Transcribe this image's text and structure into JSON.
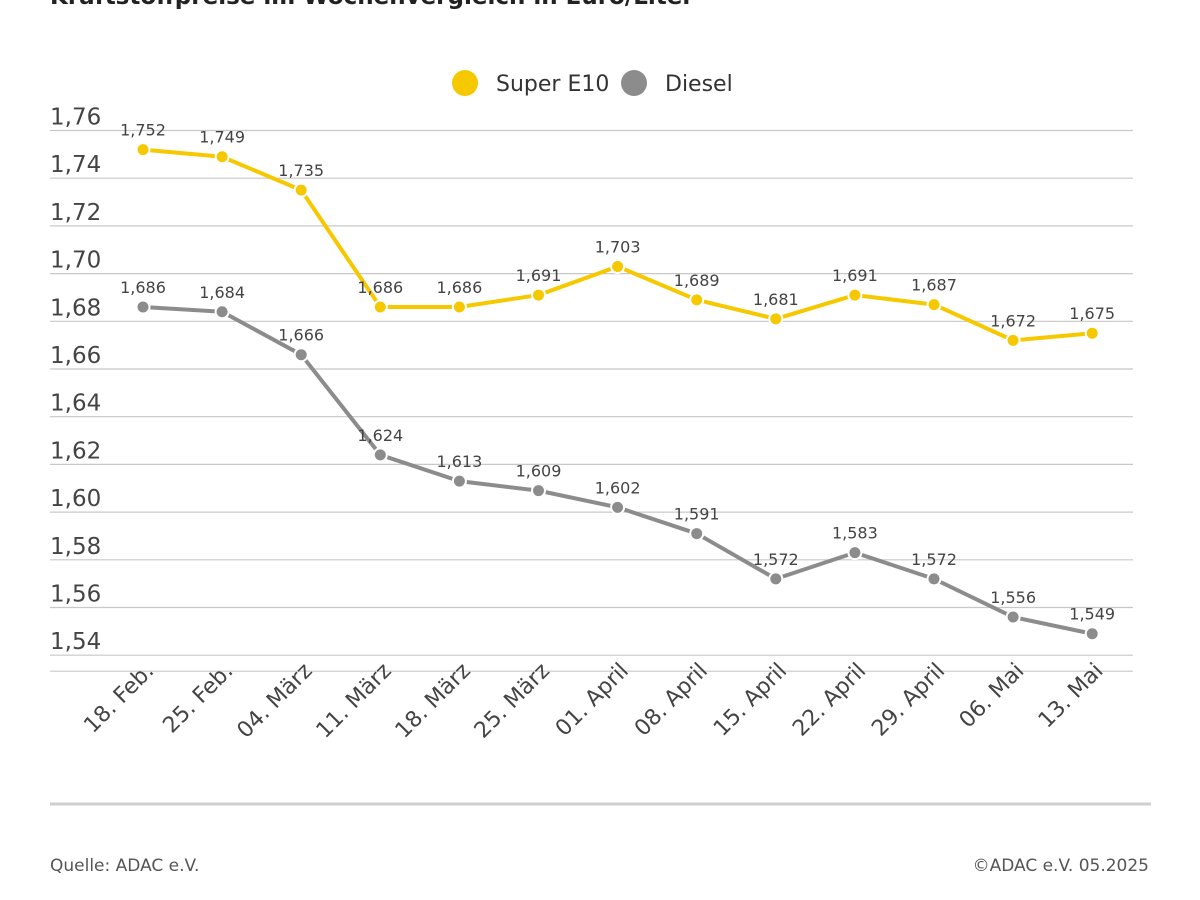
{
  "chart_data": {
    "type": "line",
    "title": "Kraftstoffpreise im Wochenvergleich in Euro/Liter",
    "categories": [
      "18. Feb.",
      "25. Feb.",
      "04. März",
      "11. März",
      "18. März",
      "25. März",
      "01. April",
      "08. April",
      "15. April",
      "22. April",
      "29. April",
      "06. Mai",
      "13. Mai"
    ],
    "series": [
      {
        "name": "Super E10",
        "color": "#f6c800",
        "values": [
          1.752,
          1.749,
          1.735,
          1.686,
          1.686,
          1.691,
          1.703,
          1.689,
          1.681,
          1.691,
          1.687,
          1.672,
          1.675
        ],
        "labels": [
          "1,752",
          "1,749",
          "1,735",
          "1,686",
          "1,686",
          "1,691",
          "1,703",
          "1,689",
          "1,681",
          "1,691",
          "1,687",
          "1,672",
          "1,675"
        ]
      },
      {
        "name": "Diesel",
        "color": "#8c8c8c",
        "values": [
          1.686,
          1.684,
          1.666,
          1.624,
          1.613,
          1.609,
          1.602,
          1.591,
          1.572,
          1.583,
          1.572,
          1.556,
          1.549
        ],
        "labels": [
          "1,686",
          "1,684",
          "1,666",
          "1,624",
          "1,613",
          "1,609",
          "1,602",
          "1,591",
          "1,572",
          "1,583",
          "1,572",
          "1,556",
          "1,549"
        ]
      }
    ],
    "y_ticks": [
      1.76,
      1.74,
      1.72,
      1.7,
      1.68,
      1.66,
      1.64,
      1.62,
      1.6,
      1.58,
      1.56,
      1.54
    ],
    "y_tick_labels": [
      "1,76",
      "1,74",
      "1,72",
      "1,70",
      "1,68",
      "1,66",
      "1,64",
      "1,62",
      "1,60",
      "1,58",
      "1,56",
      "1,54"
    ],
    "ylim": [
      1.53,
      1.76
    ],
    "grid": true,
    "legend": "top-center",
    "xlabel": "",
    "ylabel": ""
  },
  "footer": {
    "source": "Quelle: ADAC e.V.",
    "copyright": "©ADAC e.V. 05.2025"
  }
}
